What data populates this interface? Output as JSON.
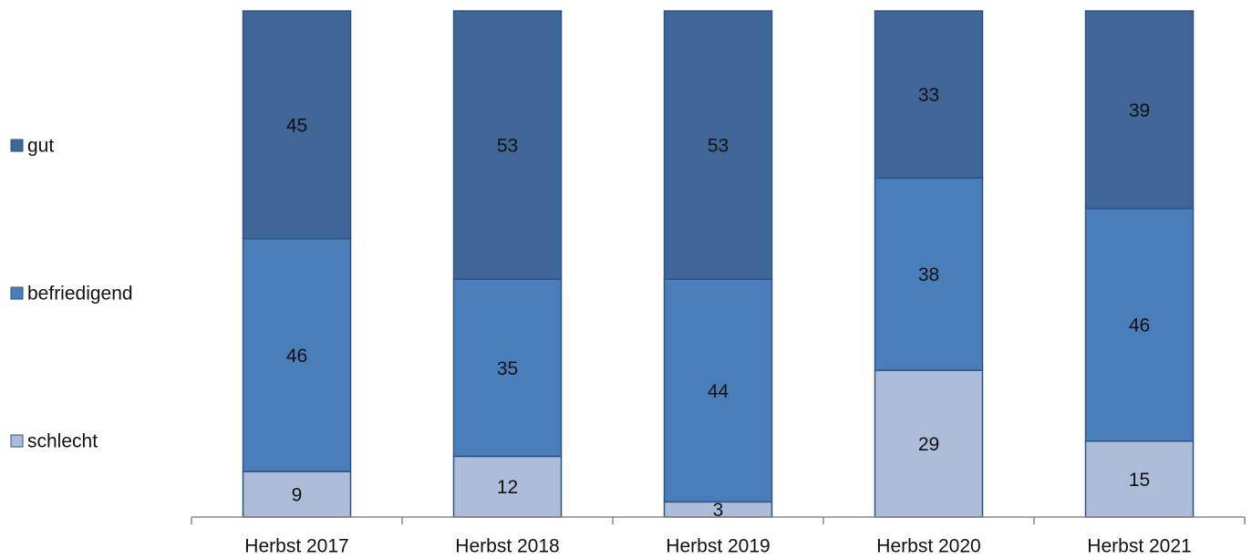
{
  "chart_data": {
    "type": "stacked_bar",
    "categories": [
      "Herbst 2017",
      "Herbst 2018",
      "Herbst 2019",
      "Herbst 2020",
      "Herbst 2021"
    ],
    "series": [
      {
        "name": "schlecht",
        "color": "#adbcd9",
        "values": [
          9,
          12,
          3,
          29,
          15
        ]
      },
      {
        "name": "befriedigend",
        "color": "#4a7ebb",
        "values": [
          46,
          35,
          44,
          38,
          46
        ]
      },
      {
        "name": "gut",
        "color": "#3e6696",
        "values": [
          45,
          53,
          53,
          33,
          39
        ]
      }
    ]
  }
}
